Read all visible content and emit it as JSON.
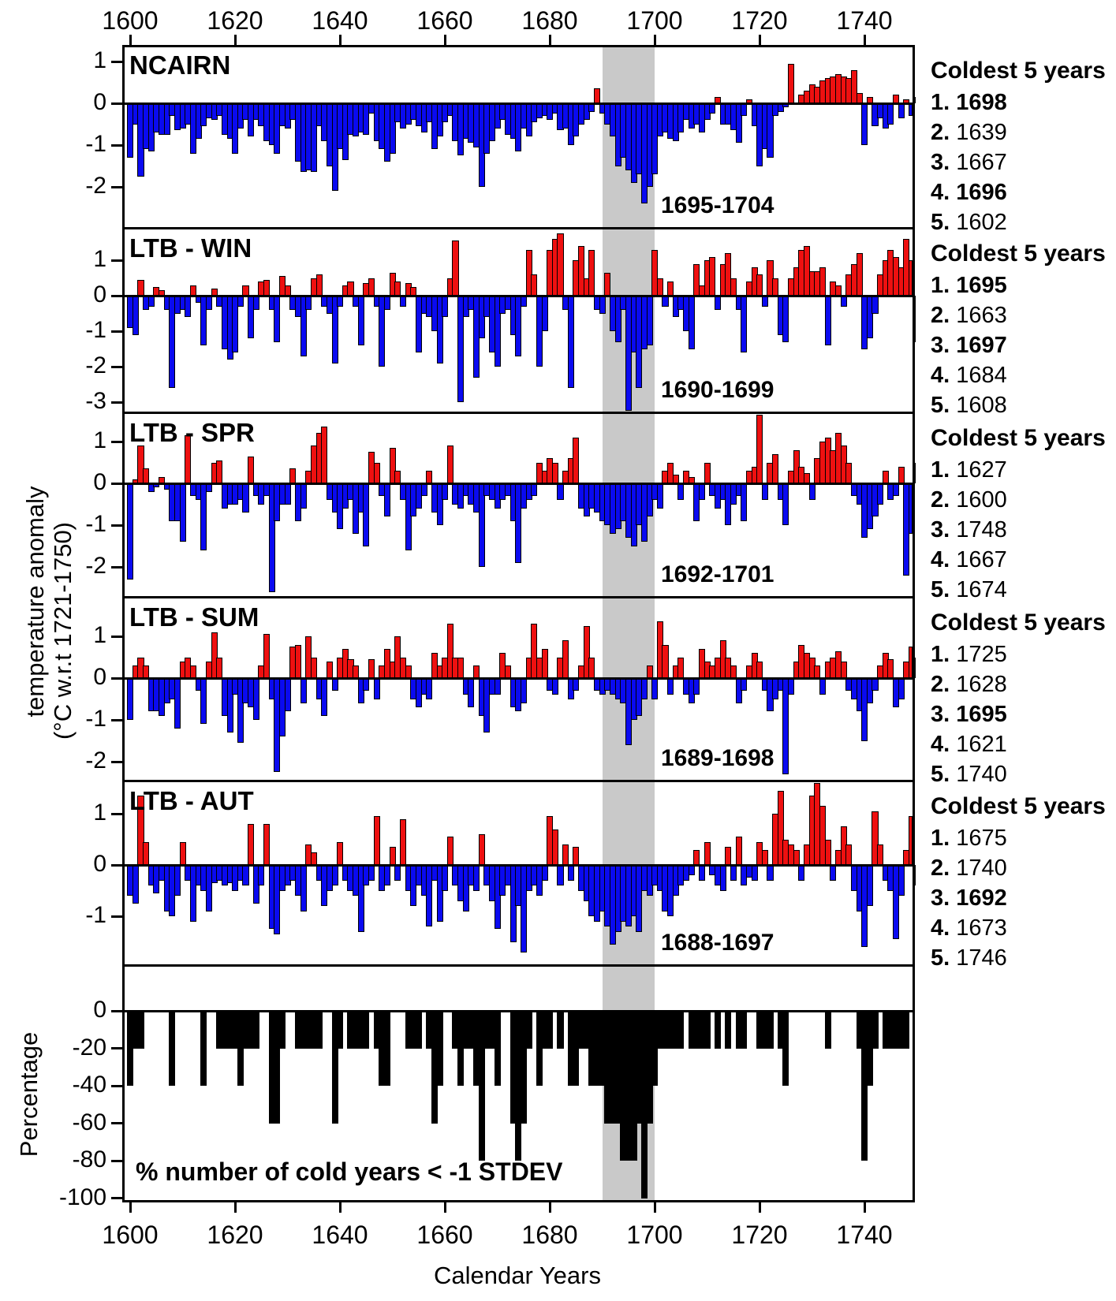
{
  "figure": {
    "left_axis_label_line1": "temperature anomaly",
    "left_axis_label_line2": "(°C w.r.t 1721-1750)",
    "percentage_axis_label": "Percentage",
    "bottom_axis_label": "Calendar Years",
    "top_axis_ticks": [
      1600,
      1620,
      1640,
      1660,
      1680,
      1700,
      1720,
      1740
    ],
    "bottom_axis_ticks": [
      1600,
      1620,
      1640,
      1660,
      1680,
      1700,
      1720,
      1740
    ],
    "highlight_band": {
      "start_year": 1690,
      "end_year": 1700,
      "color": "#c9c9c9"
    },
    "colors": {
      "positive_anomaly": "#ee1010",
      "negative_anomaly": "#0a0af0",
      "percentage_bar": "#000000",
      "band": "#c9c9c9"
    }
  },
  "chart_data": [
    {
      "type": "bar",
      "name": "NCAIRN",
      "title": "NCAIRN",
      "annotation": "1695-1704",
      "x_start": 1600,
      "x_end": 1750,
      "ylim": [
        -2.98,
        1.4
      ],
      "yticks": [
        1,
        0,
        -1,
        -2
      ],
      "coldest_5_years": {
        "title": "Coldest 5 years",
        "items": [
          {
            "rank": "1.",
            "year": "1698",
            "bold": true
          },
          {
            "rank": "2.",
            "year": "1639",
            "bold": false
          },
          {
            "rank": "3.",
            "year": "1667",
            "bold": false
          },
          {
            "rank": "4.",
            "year": "1696",
            "bold": true
          },
          {
            "rank": "5.",
            "year": "1602",
            "bold": false
          }
        ]
      },
      "values": [
        -1.3,
        -0.5,
        -1.75,
        -1.1,
        -1.15,
        -0.7,
        -0.75,
        -0.75,
        -0.3,
        -0.65,
        -0.6,
        -0.5,
        -1.2,
        -0.85,
        -0.55,
        -0.35,
        -0.4,
        -0.3,
        -0.75,
        -0.85,
        -1.2,
        -0.6,
        -0.4,
        -0.8,
        -0.4,
        -0.55,
        -0.9,
        -1.0,
        -1.2,
        -0.55,
        -0.6,
        -0.4,
        -1.4,
        -1.65,
        -1.6,
        -1.65,
        -0.55,
        -0.9,
        -1.5,
        -2.1,
        -1.1,
        -1.35,
        -0.75,
        -0.8,
        -0.7,
        -0.75,
        -0.25,
        -0.9,
        -1.1,
        -1.4,
        -1.2,
        -0.45,
        -0.6,
        -0.5,
        -0.4,
        -0.55,
        -0.7,
        -0.45,
        -1.1,
        -0.8,
        -0.45,
        -0.3,
        -0.9,
        -1.25,
        -0.85,
        -0.95,
        -1.05,
        -2.0,
        -1.2,
        -0.9,
        -0.6,
        -0.4,
        -0.75,
        -0.85,
        -1.15,
        -0.6,
        -0.8,
        -0.45,
        -0.35,
        -0.3,
        -0.4,
        -0.25,
        -0.65,
        -0.6,
        -1.0,
        -0.8,
        -0.5,
        -0.4,
        -0.2,
        0.35,
        -0.25,
        -0.5,
        -0.8,
        -1.5,
        -1.3,
        -1.6,
        -1.9,
        -1.7,
        -2.4,
        -2.0,
        -1.7,
        -0.8,
        -0.7,
        -0.85,
        -0.9,
        -0.7,
        -0.4,
        -0.6,
        -0.5,
        -0.7,
        -0.4,
        -0.25,
        0.15,
        -0.5,
        -0.5,
        -0.65,
        -0.95,
        -0.3,
        0.1,
        -0.55,
        -1.5,
        -1.1,
        -1.3,
        -0.3,
        -0.2,
        -0.1,
        0.95,
        0.0,
        0.2,
        0.3,
        0.45,
        0.4,
        0.55,
        0.6,
        0.65,
        0.7,
        0.65,
        0.6,
        0.8,
        0.25,
        -1.0,
        0.15,
        -0.55,
        -0.35,
        -0.6,
        -0.5,
        0.2,
        -0.35,
        0.1,
        -0.3,
        0.15
      ]
    },
    {
      "type": "bar",
      "name": "LTB-WIN",
      "title": "LTB - WIN",
      "annotation": "1690-1699",
      "x_start": 1600,
      "x_end": 1750,
      "ylim": [
        -3.3,
        1.91
      ],
      "yticks": [
        1,
        0,
        -1,
        -2,
        -3
      ],
      "coldest_5_years": {
        "title": "Coldest 5 years",
        "items": [
          {
            "rank": "1.",
            "year": "1695",
            "bold": true
          },
          {
            "rank": "2.",
            "year": "1663",
            "bold": false
          },
          {
            "rank": "3.",
            "year": "1697",
            "bold": true
          },
          {
            "rank": "4.",
            "year": "1684",
            "bold": false
          },
          {
            "rank": "5.",
            "year": "1608",
            "bold": false
          }
        ]
      },
      "values": [
        -0.9,
        -1.1,
        0.45,
        -0.4,
        -0.3,
        0.25,
        0.15,
        -0.4,
        -2.6,
        -0.5,
        -0.4,
        -0.6,
        0.3,
        -0.2,
        -1.4,
        -0.4,
        0.2,
        -0.3,
        -1.5,
        -1.8,
        -1.6,
        -0.3,
        0.3,
        -1.2,
        -0.4,
        0.4,
        0.45,
        -0.4,
        -1.3,
        0.55,
        0.3,
        -0.4,
        -0.6,
        -1.7,
        -0.4,
        0.5,
        0.6,
        -0.3,
        -0.5,
        -1.9,
        -0.3,
        0.3,
        0.4,
        -0.3,
        -1.4,
        0.35,
        0.5,
        -0.3,
        -2.0,
        -0.4,
        0.65,
        0.4,
        -0.3,
        0.35,
        0.25,
        -1.6,
        -0.5,
        -0.6,
        -1.0,
        -1.9,
        -0.6,
        0.5,
        1.55,
        -3.0,
        -0.6,
        -0.4,
        -2.3,
        -1.2,
        -0.6,
        -1.6,
        -2.0,
        -0.5,
        -0.4,
        -1.1,
        -1.7,
        -0.3,
        1.3,
        0.6,
        -2.0,
        -1.0,
        1.3,
        1.6,
        1.75,
        -0.4,
        -2.6,
        1.0,
        1.4,
        0.5,
        1.3,
        -0.4,
        -0.5,
        0.65,
        -1.0,
        -1.3,
        -0.4,
        -3.3,
        -1.6,
        -2.6,
        -1.5,
        -1.4,
        1.3,
        0.5,
        -0.3,
        0.4,
        -0.6,
        -0.4,
        -1.0,
        -1.5,
        0.9,
        0.3,
        1.0,
        1.1,
        -0.4,
        0.9,
        1.2,
        0.5,
        -0.4,
        -1.6,
        0.4,
        0.8,
        0.6,
        -0.3,
        1.0,
        0.5,
        -1.1,
        -1.3,
        0.5,
        0.8,
        1.3,
        1.4,
        0.7,
        0.7,
        0.8,
        -1.4,
        0.4,
        0.3,
        -0.3,
        0.6,
        0.9,
        1.2,
        -1.5,
        -1.2,
        -0.5,
        0.6,
        1.0,
        1.3,
        1.1,
        0.8,
        1.6,
        1.0,
        -1.3
      ]
    },
    {
      "type": "bar",
      "name": "LTB-SPR",
      "title": "LTB - SPR",
      "annotation": "1692-1701",
      "x_start": 1600,
      "x_end": 1750,
      "ylim": [
        -2.72,
        1.7
      ],
      "yticks": [
        1,
        0,
        -1,
        -2
      ],
      "coldest_5_years": {
        "title": "Coldest 5 years",
        "items": [
          {
            "rank": "1.",
            "year": "1627",
            "bold": false
          },
          {
            "rank": "2.",
            "year": "1600",
            "bold": false
          },
          {
            "rank": "3.",
            "year": "1748",
            "bold": false
          },
          {
            "rank": "4.",
            "year": "1667",
            "bold": false
          },
          {
            "rank": "5.",
            "year": "1674",
            "bold": false
          }
        ]
      },
      "values": [
        -2.3,
        0.1,
        0.9,
        0.35,
        -0.2,
        -0.1,
        0.15,
        -0.15,
        -0.9,
        -0.9,
        -1.4,
        1.15,
        -0.3,
        -0.4,
        -1.6,
        -0.2,
        0.5,
        0.55,
        -0.6,
        -0.5,
        -0.5,
        -0.4,
        -0.7,
        0.65,
        -0.3,
        -0.5,
        -0.3,
        -2.6,
        -0.9,
        -0.5,
        -0.5,
        0.35,
        -0.9,
        -0.6,
        0.3,
        0.9,
        1.2,
        1.35,
        -0.4,
        -0.7,
        -1.1,
        -0.6,
        -0.4,
        -1.2,
        -0.7,
        -1.5,
        0.75,
        0.5,
        -0.3,
        -0.8,
        0.85,
        0.3,
        -0.4,
        -1.6,
        -0.8,
        -0.6,
        -0.3,
        0.3,
        -0.7,
        -1.0,
        -0.4,
        0.9,
        -0.5,
        -0.6,
        -0.3,
        -0.5,
        -0.7,
        -2.0,
        -0.3,
        -0.4,
        -0.6,
        -0.4,
        -0.3,
        -0.9,
        -1.9,
        -0.6,
        -0.4,
        -0.3,
        0.5,
        0.3,
        0.6,
        0.5,
        -0.4,
        0.3,
        0.6,
        1.1,
        -0.6,
        -0.8,
        -0.6,
        -0.7,
        -0.9,
        -1.0,
        -1.2,
        -1.1,
        -0.9,
        -1.3,
        -1.5,
        -1.0,
        -1.4,
        -0.8,
        -0.4,
        -0.6,
        0.3,
        0.5,
        0.2,
        -0.4,
        0.3,
        0.15,
        -0.9,
        -0.4,
        0.5,
        -0.3,
        -0.6,
        -0.4,
        -1.0,
        -0.5,
        -0.3,
        -0.9,
        0.3,
        0.4,
        1.65,
        -0.4,
        0.5,
        0.7,
        -0.4,
        -1.0,
        0.3,
        0.8,
        0.4,
        0.25,
        -0.4,
        0.6,
        1.0,
        1.1,
        0.8,
        1.2,
        0.9,
        0.5,
        -0.3,
        -0.5,
        -1.3,
        -1.1,
        -0.8,
        -0.5,
        0.3,
        -0.4,
        -0.3,
        0.4,
        -2.2,
        -1.2,
        0.5
      ]
    },
    {
      "type": "bar",
      "name": "LTB-SUM",
      "title": "LTB - SUM",
      "annotation": "1689-1698",
      "x_start": 1600,
      "x_end": 1750,
      "ylim": [
        -2.45,
        1.94
      ],
      "yticks": [
        1,
        0,
        -1,
        -2
      ],
      "coldest_5_years": {
        "title": "Coldest 5 years",
        "items": [
          {
            "rank": "1.",
            "year": "1725",
            "bold": false
          },
          {
            "rank": "2.",
            "year": "1628",
            "bold": false
          },
          {
            "rank": "3.",
            "year": "1695",
            "bold": true
          },
          {
            "rank": "4.",
            "year": "1621",
            "bold": false
          },
          {
            "rank": "5.",
            "year": "1740",
            "bold": false
          }
        ]
      },
      "values": [
        -1.0,
        0.3,
        0.5,
        0.3,
        -0.8,
        -0.8,
        -0.9,
        -0.6,
        -0.5,
        -1.2,
        0.4,
        0.5,
        0.3,
        -0.3,
        -1.1,
        0.4,
        1.1,
        0.5,
        -0.9,
        -1.3,
        -0.4,
        -1.55,
        -0.6,
        -0.7,
        -1.0,
        0.3,
        1.05,
        -0.5,
        -2.25,
        -1.4,
        -0.8,
        0.75,
        0.8,
        -0.6,
        1.0,
        0.5,
        -0.5,
        -0.9,
        0.4,
        -0.3,
        0.5,
        0.7,
        0.45,
        0.3,
        -0.6,
        -0.3,
        0.45,
        -0.5,
        0.3,
        0.7,
        0.4,
        1.0,
        0.5,
        0.3,
        -0.5,
        -0.7,
        -0.4,
        -0.5,
        0.6,
        0.3,
        0.5,
        1.3,
        0.5,
        0.5,
        -0.4,
        -0.7,
        0.3,
        -0.9,
        -1.3,
        -0.4,
        -0.4,
        0.6,
        0.3,
        -0.7,
        -0.8,
        -0.6,
        0.5,
        1.3,
        0.5,
        0.7,
        -0.3,
        -0.4,
        0.5,
        0.9,
        -0.5,
        -0.3,
        0.3,
        1.25,
        0.5,
        -0.3,
        -0.4,
        -0.3,
        -0.4,
        -0.5,
        -0.6,
        -1.6,
        -1.0,
        -0.9,
        -0.5,
        0.3,
        -0.5,
        1.35,
        0.8,
        -0.4,
        0.3,
        0.5,
        -0.4,
        -0.6,
        -0.4,
        0.7,
        0.4,
        0.3,
        0.5,
        0.9,
        0.5,
        0.3,
        -0.6,
        -0.3,
        0.3,
        0.6,
        0.4,
        -0.3,
        -0.8,
        -0.5,
        -0.3,
        -2.3,
        -0.4,
        0.4,
        0.8,
        0.6,
        0.5,
        0.3,
        -0.4,
        0.4,
        0.5,
        0.65,
        0.4,
        -0.3,
        -0.5,
        -0.8,
        -1.5,
        -0.6,
        -0.3,
        0.3,
        0.6,
        0.45,
        -0.7,
        -0.5,
        0.4,
        0.75,
        0.5
      ]
    },
    {
      "type": "bar",
      "name": "LTB-AUT",
      "title": "LTB - AUT",
      "annotation": "1688-1697",
      "x_start": 1600,
      "x_end": 1750,
      "ylim": [
        -1.95,
        1.65
      ],
      "yticks": [
        1,
        0,
        -1
      ],
      "coldest_5_years": {
        "title": "Coldest 5 years",
        "items": [
          {
            "rank": "1.",
            "year": "1675",
            "bold": false
          },
          {
            "rank": "2.",
            "year": "1740",
            "bold": false
          },
          {
            "rank": "3.",
            "year": "1692",
            "bold": true
          },
          {
            "rank": "4.",
            "year": "1673",
            "bold": false
          },
          {
            "rank": "5.",
            "year": "1746",
            "bold": false
          }
        ]
      },
      "values": [
        -0.6,
        -0.75,
        1.35,
        0.45,
        -0.4,
        -0.55,
        -0.3,
        -0.9,
        -1.0,
        -0.6,
        0.45,
        -0.3,
        -1.1,
        -0.4,
        -0.5,
        -0.9,
        -0.35,
        -0.3,
        -0.4,
        -0.35,
        -0.5,
        -0.3,
        -0.4,
        0.8,
        -0.75,
        -0.4,
        0.8,
        -1.25,
        -1.35,
        -0.5,
        -0.4,
        -0.3,
        -0.6,
        -0.9,
        0.4,
        0.25,
        -0.3,
        -0.8,
        -0.5,
        -0.4,
        0.45,
        -0.3,
        -0.5,
        -0.6,
        -1.3,
        -0.4,
        -0.3,
        0.95,
        -0.5,
        -0.4,
        0.35,
        -0.3,
        0.9,
        -0.5,
        -0.8,
        -0.4,
        -0.6,
        -1.2,
        -0.3,
        -1.1,
        -0.5,
        0.55,
        -0.4,
        -0.7,
        -0.9,
        -0.4,
        -0.5,
        0.6,
        -0.4,
        -0.7,
        -1.25,
        -0.6,
        -0.4,
        -1.5,
        -0.8,
        -1.7,
        -0.5,
        -0.4,
        -0.6,
        -0.3,
        0.95,
        0.7,
        -0.4,
        0.4,
        -0.3,
        0.35,
        -0.5,
        -0.7,
        -1.0,
        -1.1,
        -0.9,
        -1.2,
        -1.55,
        -1.3,
        -1.1,
        -1.2,
        -1.0,
        -1.3,
        -0.5,
        -0.6,
        -0.4,
        -0.5,
        -0.9,
        -1.0,
        -0.6,
        -0.4,
        -0.3,
        -0.2,
        0.3,
        -0.3,
        0.45,
        -0.2,
        -0.4,
        -0.5,
        0.35,
        -0.3,
        0.55,
        -0.4,
        -0.25,
        -0.3,
        0.45,
        0.3,
        -0.3,
        1.0,
        1.45,
        0.5,
        0.4,
        0.3,
        -0.3,
        0.4,
        1.35,
        1.7,
        1.15,
        0.5,
        -0.3,
        0.3,
        0.75,
        0.4,
        -0.5,
        -0.9,
        -1.6,
        -0.8,
        1.05,
        0.4,
        -0.3,
        -0.5,
        -1.45,
        -0.6,
        0.3,
        0.95,
        -0.4
      ]
    },
    {
      "type": "bar",
      "name": "percentage",
      "title": "",
      "annotation": "% number of cold years < -1 STDEV",
      "x_start": 1600,
      "x_end": 1750,
      "ylim": [
        -102,
        24
      ],
      "yticks": [
        0,
        -20,
        -40,
        -60,
        -80,
        -100
      ],
      "values": [
        -40,
        -20,
        -20,
        0,
        0,
        0,
        0,
        0,
        -40,
        0,
        0,
        0,
        0,
        0,
        -40,
        0,
        0,
        -20,
        -20,
        -20,
        -20,
        -40,
        -20,
        -20,
        -20,
        0,
        0,
        -60,
        -60,
        -20,
        0,
        0,
        -20,
        -20,
        -20,
        -20,
        -20,
        0,
        0,
        -60,
        -20,
        0,
        -20,
        -20,
        -20,
        -20,
        0,
        -20,
        -40,
        -40,
        0,
        0,
        0,
        -20,
        -20,
        -20,
        0,
        -20,
        -60,
        -40,
        0,
        0,
        -20,
        -40,
        -20,
        -20,
        -40,
        -80,
        -20,
        -20,
        -40,
        0,
        0,
        -60,
        -80,
        -60,
        -20,
        0,
        -40,
        -20,
        -20,
        0,
        -20,
        0,
        -40,
        -40,
        -20,
        -20,
        -40,
        -40,
        -40,
        -60,
        -60,
        -60,
        -80,
        -80,
        -80,
        -60,
        -100,
        -60,
        -40,
        -20,
        -20,
        -20,
        -20,
        -20,
        0,
        -20,
        -20,
        -20,
        -20,
        0,
        -20,
        0,
        -20,
        0,
        -20,
        -20,
        0,
        0,
        -20,
        -20,
        -20,
        0,
        -20,
        -40,
        0,
        0,
        0,
        0,
        0,
        0,
        0,
        -20,
        0,
        0,
        0,
        0,
        0,
        -20,
        -80,
        -40,
        -20,
        0,
        -20,
        -20,
        -20,
        -20,
        -20,
        0,
        -20
      ]
    }
  ]
}
